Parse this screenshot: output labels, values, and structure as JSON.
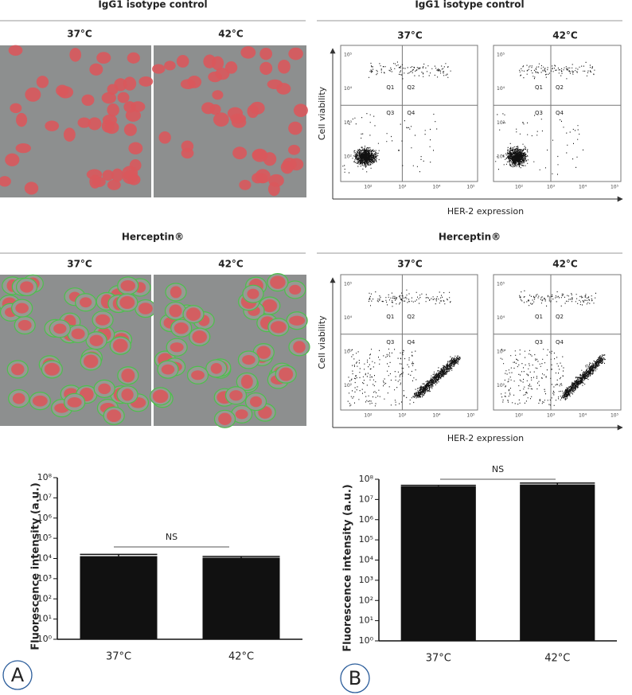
{
  "microscopy": {
    "sections": [
      {
        "title": "IgG1 isotype control",
        "conditions": [
          "37°C",
          "42°C"
        ]
      },
      {
        "title": "Herceptin®",
        "conditions": [
          "37°C",
          "42°C"
        ]
      }
    ]
  },
  "flow_cytometry": {
    "sections": [
      {
        "title": "IgG1 isotype control",
        "conditions": [
          "37°C",
          "42°C"
        ]
      },
      {
        "title": "Herceptin®",
        "conditions": [
          "37°C",
          "42°C"
        ]
      }
    ],
    "ylabel": "Cell viability",
    "xlabel": "HER-2 expression",
    "quadrants": [
      "Q1",
      "Q2",
      "Q3",
      "Q4"
    ],
    "ticks": [
      "10²",
      "10³",
      "10⁴",
      "10⁵"
    ]
  },
  "chart_data": [
    {
      "type": "bar",
      "panel_label": "A",
      "ylabel": "Fluorescence intensity (a.u.)",
      "annotation": "NS",
      "categories": [
        "37°C",
        "42°C"
      ],
      "values": [
        13000,
        11000
      ],
      "errors": [
        3000,
        1500
      ],
      "color": "#111111",
      "log_scale": true,
      "ylim": [
        1,
        100000000
      ],
      "yticks": [
        {
          "value": 1,
          "label": "10⁰"
        },
        {
          "value": 10,
          "label": "10¹"
        },
        {
          "value": 100,
          "label": "10²"
        },
        {
          "value": 1000,
          "label": "10³"
        },
        {
          "value": 10000,
          "label": "10⁴"
        },
        {
          "value": 100000,
          "label": "10⁵"
        },
        {
          "value": 1000000,
          "label": "10⁶"
        },
        {
          "value": 10000000,
          "label": "10⁷"
        },
        {
          "value": 100000000,
          "label": "10⁸"
        }
      ]
    },
    {
      "type": "bar",
      "panel_label": "B",
      "ylabel": "Fluorescence intensity (a.u.)",
      "annotation": "NS",
      "categories": [
        "37°C",
        "42°C"
      ],
      "values": [
        45000000,
        55000000
      ],
      "errors": [
        5000000,
        10000000
      ],
      "color": "#111111",
      "log_scale": true,
      "ylim": [
        1,
        100000000
      ],
      "yticks": [
        {
          "value": 1,
          "label": "10⁰"
        },
        {
          "value": 10,
          "label": "10¹"
        },
        {
          "value": 100,
          "label": "10²"
        },
        {
          "value": 1000,
          "label": "10³"
        },
        {
          "value": 10000,
          "label": "10⁴"
        },
        {
          "value": 100000,
          "label": "10⁵"
        },
        {
          "value": 1000000,
          "label": "10⁶"
        },
        {
          "value": 10000000,
          "label": "10⁷"
        },
        {
          "value": 100000000,
          "label": "10⁸"
        }
      ]
    }
  ]
}
